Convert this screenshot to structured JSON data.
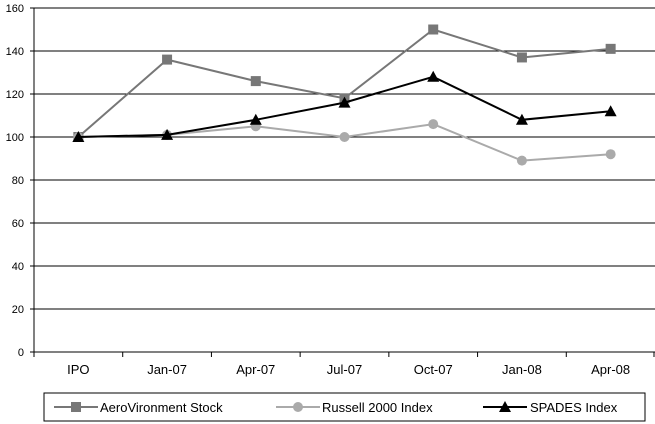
{
  "chart_data": {
    "type": "line",
    "categories": [
      "IPO",
      "Jan-07",
      "Apr-07",
      "Jul-07",
      "Oct-07",
      "Jan-08",
      "Apr-08"
    ],
    "ylim": [
      0,
      160
    ],
    "yticks": [
      0,
      20,
      40,
      60,
      80,
      100,
      120,
      140,
      160
    ],
    "grid": true,
    "legend_position": "bottom",
    "series": [
      {
        "name": "AeroVironment Stock",
        "values": [
          100,
          136,
          126,
          118,
          150,
          137,
          141
        ],
        "color": "#777777",
        "marker": "square"
      },
      {
        "name": "Russell 2000 Index",
        "values": [
          100,
          101,
          105,
          100,
          106,
          89,
          92
        ],
        "color": "#aaaaaa",
        "marker": "circle"
      },
      {
        "name": "SPADES Index",
        "values": [
          100,
          101,
          108,
          116,
          128,
          108,
          112
        ],
        "color": "#000000",
        "marker": "triangle"
      }
    ]
  }
}
